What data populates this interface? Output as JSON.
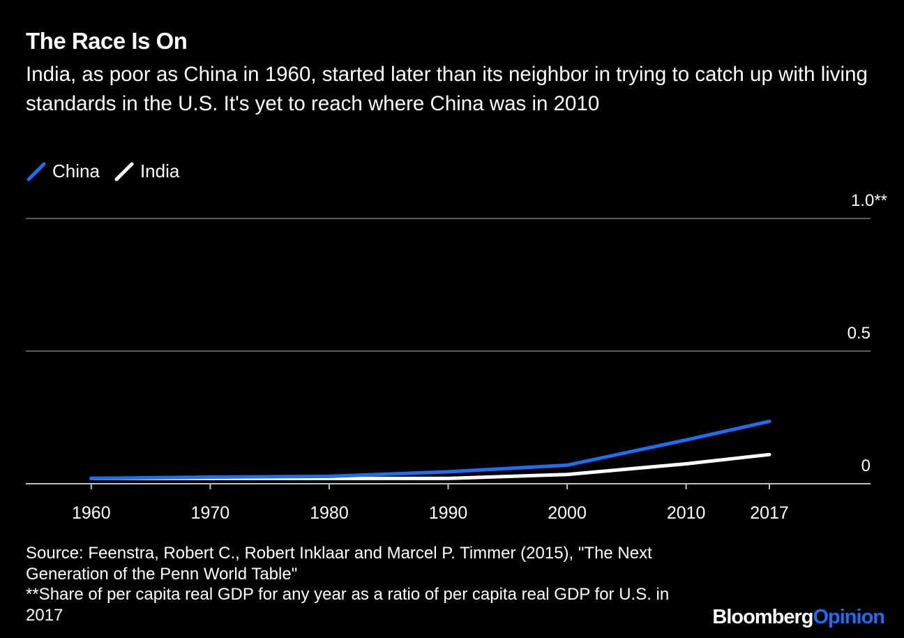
{
  "title": "The Race Is On",
  "subtitle": "India, as poor as China in 1960, started later than its neighbor in trying to catch up with living standards in the U.S. It's yet to reach where China was in 2010",
  "legend": [
    {
      "name": "China",
      "color": "#1f6df0"
    },
    {
      "name": "India",
      "color": "#ffffff"
    }
  ],
  "chart_data": {
    "type": "line",
    "x": [
      1960,
      1970,
      1980,
      1990,
      2000,
      2010,
      2017
    ],
    "series": [
      {
        "name": "China",
        "color": "#1f6df0",
        "values": [
          0.02,
          0.025,
          0.028,
          0.045,
          0.07,
          0.165,
          0.235
        ]
      },
      {
        "name": "India",
        "color": "#ffffff",
        "values": [
          0.02,
          0.02,
          0.02,
          0.02,
          0.035,
          0.075,
          0.11
        ]
      }
    ],
    "x_ticks": [
      "1960",
      "1970",
      "1980",
      "1990",
      "2000",
      "2010",
      "2017"
    ],
    "y_ticks": [
      {
        "value": 0,
        "label": "0"
      },
      {
        "value": 0.5,
        "label": "0.5"
      },
      {
        "value": 1.0,
        "label": "1.0**"
      }
    ],
    "xlim": [
      1954.5,
      2025.5
    ],
    "ylim": [
      0,
      1.0
    ],
    "grid": true,
    "legend_position": "top-left"
  },
  "footnotes": {
    "source": "Source: Feenstra, Robert C., Robert Inklaar and Marcel P. Timmer (2015), \"The Next Generation of the Penn World Table\"",
    "note": "**Share of per capita real GDP for any year as a ratio of per capita real GDP for U.S. in 2017"
  },
  "brand": {
    "part1": "Bloomberg",
    "part2": "Opinion"
  }
}
